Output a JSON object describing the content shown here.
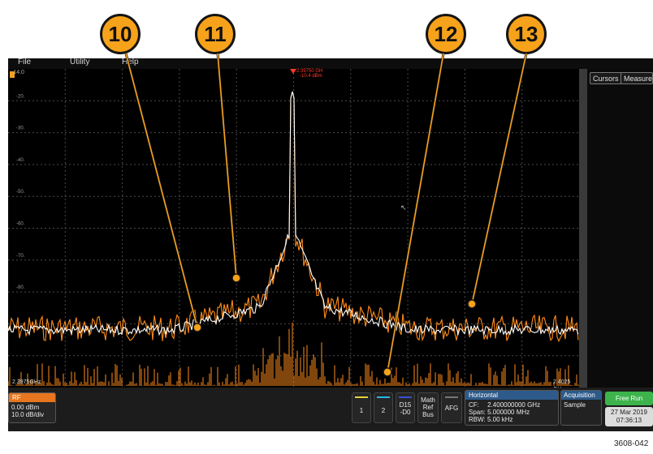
{
  "callouts": [
    "10",
    "11",
    "12",
    "13"
  ],
  "menu": {
    "file": "File",
    "utility": "Utility",
    "help": "Help"
  },
  "plot": {
    "ref_level": "-14.0",
    "grid_labels": [
      "-20.",
      "-30.",
      "-40.",
      "-50.",
      "-60.",
      "-70.",
      "-80."
    ],
    "marker_line1": "2.39750 GH",
    "marker_line2": "-10.4 dBm",
    "start_freq": "2.3975GHz",
    "stop_freq": "2.4025 GHz"
  },
  "right_panel": {
    "cursors": "Cursors",
    "measure": "Measure"
  },
  "rf_badge": {
    "title": "RF",
    "line1": "0.00 dBm",
    "line2": "10.0 dB/div"
  },
  "channels": {
    "ch1": "1",
    "ch2": "2",
    "d15_line1": "D15",
    "d15_line2": "-D0",
    "math": "Math",
    "ref": "Ref",
    "bus": "Bus",
    "afg": "AFG"
  },
  "horizontal": {
    "title": "Horizontal",
    "cf_label": "CF:",
    "cf_value": "2.400000000 GHz",
    "span": "Span: 5.000000 MHz",
    "rbw": "RBW: 5.00 kHz"
  },
  "acquisition": {
    "title": "Acquisition",
    "mode": "Sample"
  },
  "run": {
    "label": "Free Run"
  },
  "datetime": {
    "date": "27 Mar 2019",
    "time": "07:36:13"
  },
  "figure_id": "3608-042",
  "colors": {
    "accent": "#f7a21b",
    "trace_orange": "#ff8c1a",
    "trace_white": "#ffffff",
    "run_green": "#3cb44b",
    "rf_orange": "#e8761e",
    "horiz_blue": "#2d5a8a"
  }
}
